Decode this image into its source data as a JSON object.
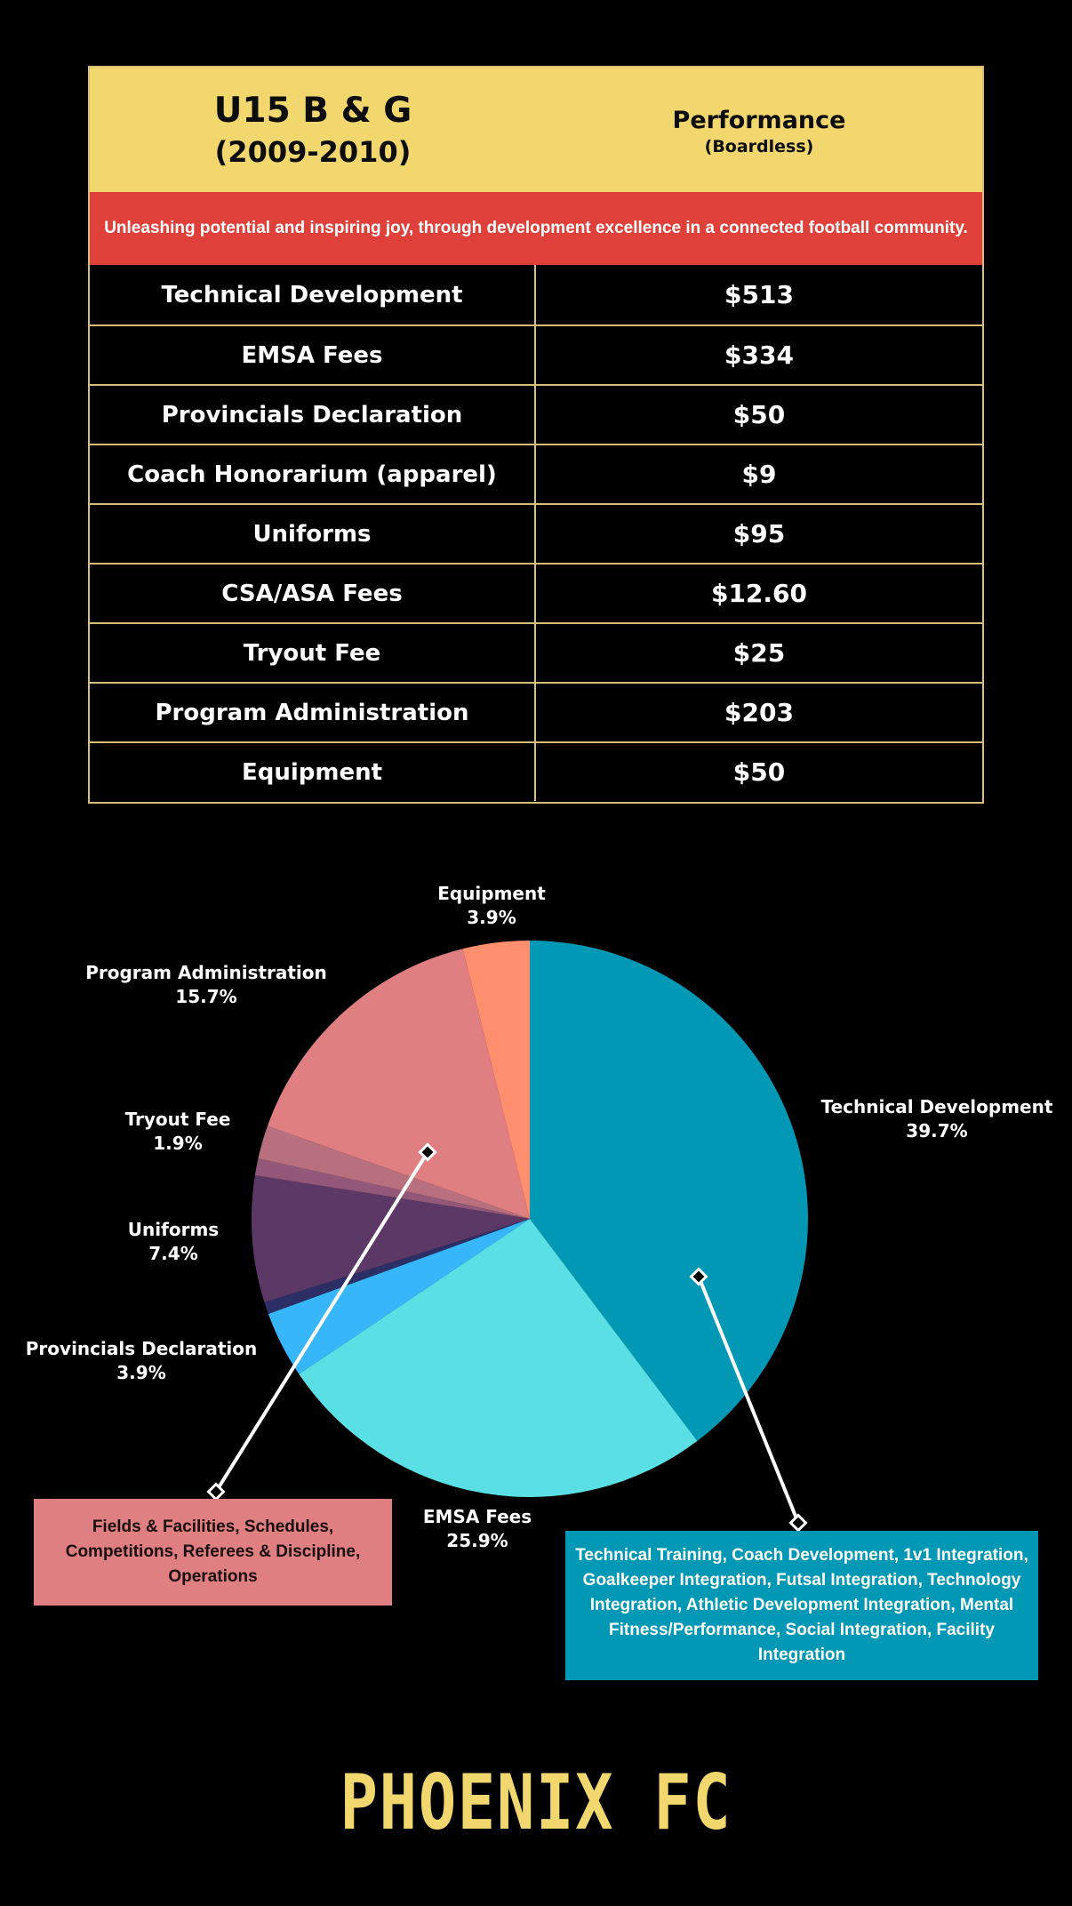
{
  "header": {
    "group_line1": "U15 B & G",
    "group_line2": "(2009-2010)",
    "program_line1": "Performance",
    "program_line2": "(Boardless)"
  },
  "banner_text": "Unleashing potential and inspiring joy, through development excellence in a connected football community.",
  "fees": [
    {
      "label": "Technical Development",
      "amount": "$513"
    },
    {
      "label": "EMSA Fees",
      "amount": "$334"
    },
    {
      "label": "Provincials Declaration",
      "amount": "$50"
    },
    {
      "label": "Coach Honorarium (apparel)",
      "amount": "$9"
    },
    {
      "label": "Uniforms",
      "amount": "$95"
    },
    {
      "label": "CSA/ASA Fees",
      "amount": "$12.60"
    },
    {
      "label": "Tryout Fee",
      "amount": "$25"
    },
    {
      "label": "Program Administration",
      "amount": "$203"
    },
    {
      "label": "Equipment",
      "amount": "$50"
    }
  ],
  "chart_data": {
    "type": "pie",
    "slices": [
      {
        "name": "Technical Development",
        "value": 513,
        "percent_label": "39.7%",
        "color": "#0098b4"
      },
      {
        "name": "EMSA Fees",
        "value": 334,
        "percent_label": "25.9%",
        "color": "#5ae0e4"
      },
      {
        "name": "Provincials Declaration",
        "value": 50,
        "percent_label": "3.9%",
        "color": "#37b6fb"
      },
      {
        "name": "Coach Honorarium (apparel)",
        "value": 9,
        "percent_label": "",
        "color": "#2b2f66"
      },
      {
        "name": "Uniforms",
        "value": 95,
        "percent_label": "7.4%",
        "color": "#5c3866"
      },
      {
        "name": "CSA/ASA Fees",
        "value": 12.6,
        "percent_label": "",
        "color": "#93577a"
      },
      {
        "name": "Tryout Fee",
        "value": 25,
        "percent_label": "1.9%",
        "color": "#b8707f"
      },
      {
        "name": "Program Administration",
        "value": 203,
        "percent_label": "15.7%",
        "color": "#e07f81"
      },
      {
        "name": "Equipment",
        "value": 50,
        "percent_label": "3.9%",
        "color": "#ff8f6e"
      }
    ],
    "start_angle_deg": 0,
    "direction": "clockwise"
  },
  "callouts": {
    "admin": "Fields & Facilities, Schedules, Competitions, Referees & Discipline, Operations",
    "technical": "Technical Training, Coach Development, 1v1 Integration, Goalkeeper Integration, Futsal Integration, Technology Integration, Athletic Development Integration, Mental Fitness/Performance, Social Integration, Facility Integration"
  },
  "logo_text": "PHOENIX FC"
}
